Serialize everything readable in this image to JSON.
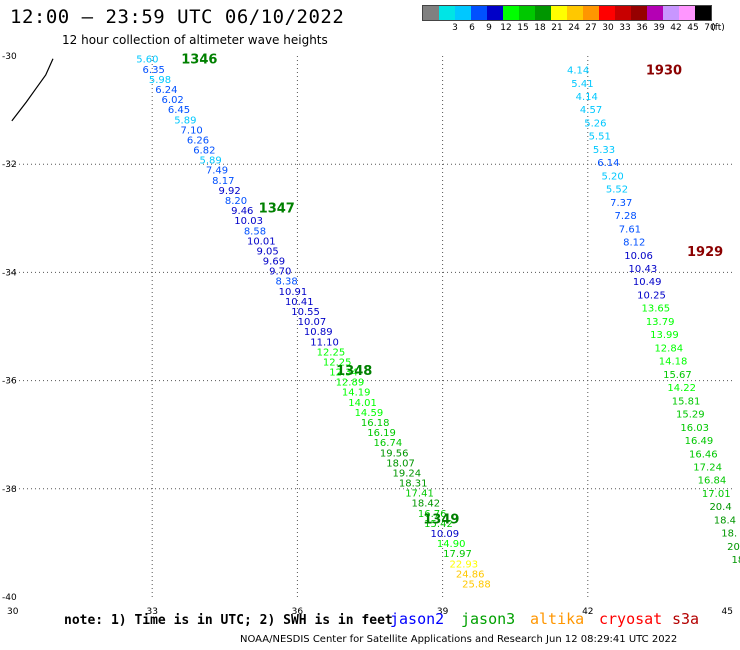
{
  "header": {
    "title": "12:00 – 23:59 UTC 06/10/2022",
    "subtitle": "12 hour collection of altimeter wave heights"
  },
  "legend": {
    "unit": "(ft)",
    "bins": [
      {
        "label": "",
        "color": "#808080"
      },
      {
        "label": "3",
        "color": "#00e5e5"
      },
      {
        "label": "6",
        "color": "#00c8ff"
      },
      {
        "label": "9",
        "color": "#0050ff"
      },
      {
        "label": "12",
        "color": "#0000c8"
      },
      {
        "label": "15",
        "color": "#00ff00"
      },
      {
        "label": "18",
        "color": "#00c800"
      },
      {
        "label": "21",
        "color": "#009600"
      },
      {
        "label": "24",
        "color": "#ffff00"
      },
      {
        "label": "27",
        "color": "#ffc800"
      },
      {
        "label": "30",
        "color": "#ff9600"
      },
      {
        "label": "33",
        "color": "#ff0000"
      },
      {
        "label": "36",
        "color": "#c80000"
      },
      {
        "label": "39",
        "color": "#960000"
      },
      {
        "label": "42",
        "color": "#b400b4"
      },
      {
        "label": "45",
        "color": "#c896ff"
      },
      {
        "label": "70",
        "color": "#ff96ff"
      },
      {
        "label": "",
        "color": "#000000"
      }
    ]
  },
  "map": {
    "lon_range": [
      30,
      45
    ],
    "lat_range": [
      -40,
      -30
    ],
    "lon_ticks": [
      "30",
      "33",
      "36",
      "39",
      "42",
      "45"
    ],
    "lat_ticks": [
      "-30",
      "-32",
      "-34",
      "-36",
      "-38",
      "-40"
    ],
    "coastline": [
      [
        30.1,
        -31.2
      ],
      [
        30.4,
        -30.85
      ],
      [
        30.6,
        -30.6
      ],
      [
        30.8,
        -30.35
      ],
      [
        30.95,
        -30.05
      ]
    ],
    "tracks": [
      {
        "id": "1346",
        "label_color": "#008000",
        "label_pos": [
          33.6,
          -30.05
        ],
        "start": [
          32.9,
          -30.05
        ],
        "end": [
          39.7,
          -39.75
        ],
        "values": [
          "5.60",
          "6.35",
          "5.98",
          "6.24",
          "6.02",
          "6.45",
          "5.89",
          "7.10",
          "6.26",
          "6.82",
          "5.89",
          "7.49",
          "8.17",
          "9.92",
          "8.20",
          "9.46",
          "10.03",
          "8.58",
          "10.01",
          "9.05",
          "9.69",
          "9.70",
          "8.38",
          "10.91",
          "10.41",
          "10.55",
          "10.07",
          "10.89",
          "11.10",
          "12.25",
          "12.25",
          "12.34",
          "12.89",
          "14.19",
          "14.01",
          "14.59",
          "16.18",
          "16.19",
          "16.74",
          "19.56",
          "18.07",
          "19.24",
          "18.31",
          "17.41",
          "18.42",
          "16.76",
          "15.42",
          "10.09",
          "14.90",
          "17.97",
          "22.93",
          "24.86",
          "25.88"
        ]
      },
      {
        "id": "1347",
        "label_color": "#008000",
        "label_pos": [
          35.2,
          -32.8
        ]
      },
      {
        "id": "1348",
        "label_color": "#008000",
        "label_pos": [
          36.8,
          -35.8
        ]
      },
      {
        "id": "1349",
        "label_color": "#008000",
        "label_pos": [
          38.6,
          -38.55
        ]
      },
      {
        "id": "1930",
        "label_color": "#8b0000",
        "label_pos": [
          43.2,
          -30.25
        ],
        "start": [
          41.8,
          -30.25
        ],
        "end": [
          45.1,
          -39.3
        ],
        "values": [
          "4.14",
          "5.41",
          "4.14",
          "4.57",
          "5.26",
          "5.51",
          "5.33",
          "6.14",
          "5.20",
          "5.52",
          "7.37",
          "7.28",
          "7.61",
          "8.12",
          "10.06",
          "10.43",
          "10.49",
          "10.25",
          "13.65",
          "13.79",
          "13.99",
          "12.84",
          "14.18",
          "15.67",
          "14.22",
          "15.81",
          "15.29",
          "16.03",
          "16.49",
          "16.46",
          "17.24",
          "16.84",
          "17.01",
          "20.4",
          "18.4",
          "18.",
          "20",
          "18"
        ]
      },
      {
        "id": "1929",
        "label_color": "#8b0000",
        "label_pos": [
          44.05,
          -33.6
        ]
      }
    ]
  },
  "footer": {
    "note": "note: 1) Time is in UTC; 2) SWH is in feet",
    "satellites": [
      {
        "name": "jason2",
        "color": "#0000ff"
      },
      {
        "name": "jason3",
        "color": "#00a000"
      },
      {
        "name": "altika",
        "color": "#ff9600"
      },
      {
        "name": "cryosat",
        "color": "#ff0000"
      },
      {
        "name": "s3a",
        "color": "#b40000"
      }
    ],
    "credit": "NOAA/NESDIS Center for Satellite Applications and Research    Jun 12 08:29:41 UTC 2022"
  }
}
